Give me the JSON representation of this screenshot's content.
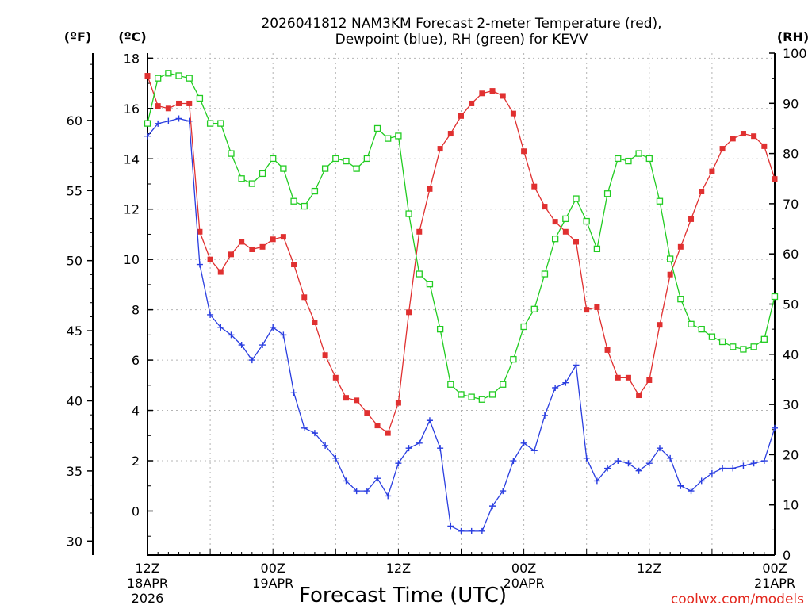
{
  "chart_data": {
    "type": "line",
    "title": "2026041812 NAM3KM Forecast 2-meter Temperature (red),",
    "subtitle": "Dewpoint (blue), RH (green) for KEVV",
    "xlabel": "Forecast Time (UTC)",
    "credit": "coolwx.com/models",
    "units": {
      "fahrenheit": "(ºF)",
      "celsius": "(ºC)",
      "rh": "(RH)"
    },
    "x_hours": {
      "start": 0,
      "step": 1,
      "range": [
        0,
        60
      ]
    },
    "celsius_axis": {
      "ylim": [
        -1.75,
        18.2
      ],
      "ticks": [
        0,
        2,
        4,
        6,
        8,
        10,
        12,
        14,
        16,
        18
      ]
    },
    "fahrenheit_axis": {
      "ylim": [
        29.0,
        64.8
      ],
      "ticks": [
        30,
        35,
        40,
        45,
        50,
        55,
        60
      ]
    },
    "rh_axis": {
      "ylim": [
        0,
        100
      ],
      "ticks": [
        0,
        10,
        20,
        30,
        40,
        50,
        60,
        70,
        80,
        90,
        100
      ]
    },
    "x_ticks": [
      {
        "hour": 0,
        "time": "12Z",
        "date": "18APR",
        "year": "2026"
      },
      {
        "hour": 12,
        "time": "00Z",
        "date": "19APR"
      },
      {
        "hour": 24,
        "time": "12Z"
      },
      {
        "hour": 36,
        "time": "00Z",
        "date": "20APR"
      },
      {
        "hour": 48,
        "time": "12Z"
      },
      {
        "hour": 60,
        "time": "00Z",
        "date": "21APR"
      }
    ],
    "series": [
      {
        "name": "2-meter Temperature",
        "axis": "celsius",
        "color": "#e03030",
        "marker": "filled-square",
        "values": [
          17.3,
          16.1,
          16.0,
          16.2,
          16.2,
          11.1,
          10.0,
          9.5,
          10.2,
          10.7,
          10.4,
          10.5,
          10.8,
          10.9,
          9.8,
          8.5,
          7.5,
          6.2,
          5.3,
          4.5,
          4.4,
          3.9,
          3.4,
          3.1,
          4.3,
          7.9,
          11.1,
          12.8,
          14.4,
          15.0,
          15.7,
          16.2,
          16.6,
          16.7,
          16.5,
          15.8,
          14.3,
          12.9,
          12.1,
          11.5,
          11.1,
          10.7,
          8.0,
          8.1,
          6.4,
          5.3,
          5.3,
          4.6,
          5.2,
          7.4,
          9.4,
          10.5,
          11.6,
          12.7,
          13.5,
          14.4,
          14.8,
          15.0,
          14.9,
          14.5,
          13.2
        ]
      },
      {
        "name": "Dewpoint",
        "axis": "celsius",
        "color": "#2a3ee0",
        "marker": "plus",
        "values": [
          14.9,
          15.4,
          15.5,
          15.6,
          15.5,
          9.8,
          7.8,
          7.3,
          7.0,
          6.6,
          6.0,
          6.6,
          7.3,
          7.0,
          4.7,
          3.3,
          3.1,
          2.6,
          2.1,
          1.2,
          0.8,
          0.8,
          1.3,
          0.6,
          1.9,
          2.5,
          2.7,
          3.6,
          2.5,
          -0.6,
          -0.8,
          -0.8,
          -0.8,
          0.2,
          0.8,
          2.0,
          2.7,
          2.4,
          3.8,
          4.9,
          5.1,
          5.8,
          2.1,
          1.2,
          1.7,
          2.0,
          1.9,
          1.6,
          1.9,
          2.5,
          2.1,
          1.0,
          0.8,
          1.2,
          1.5,
          1.7,
          1.7,
          1.8,
          1.9,
          2.0,
          3.3
        ]
      },
      {
        "name": "RH",
        "axis": "rh",
        "color": "#22cc22",
        "marker": "open-square",
        "values": [
          86,
          95,
          96,
          95.5,
          95,
          91,
          86,
          86,
          80,
          75,
          74,
          76,
          79,
          77,
          70.5,
          69.5,
          72.5,
          77,
          79,
          78.5,
          77,
          79,
          85,
          83,
          83.5,
          68,
          56,
          54,
          45,
          34,
          32,
          31.5,
          31,
          32,
          34,
          39,
          45.5,
          49,
          56,
          63,
          67,
          71,
          66.5,
          61,
          72,
          79,
          78.5,
          80,
          79,
          70.5,
          59,
          51,
          46,
          45,
          43.5,
          42.5,
          41.5,
          41,
          41.5,
          43,
          51.5
        ]
      }
    ]
  }
}
